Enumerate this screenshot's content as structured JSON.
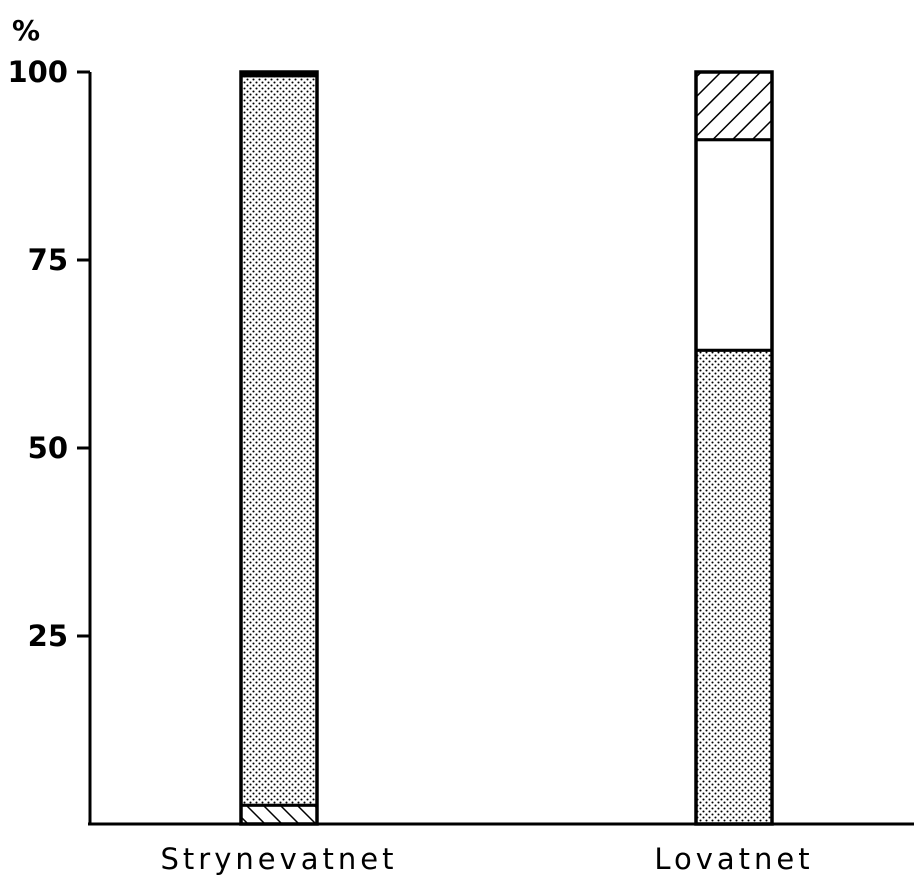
{
  "chart_data": {
    "type": "stacked-bar",
    "ylabel": "%",
    "ylim": [
      0,
      100
    ],
    "yticks": [
      25,
      50,
      75,
      100
    ],
    "categories": [
      "Strynevatnet",
      "Lovatnet"
    ],
    "segment_patterns": [
      "hatched-backslash",
      "dotted",
      "white",
      "hatched-slash",
      "black"
    ],
    "series": [
      {
        "pattern": "hatched-backslash",
        "values": [
          2.5,
          0
        ]
      },
      {
        "pattern": "dotted",
        "values": [
          97,
          63
        ]
      },
      {
        "pattern": "white",
        "values": [
          0,
          28
        ]
      },
      {
        "pattern": "hatched-slash",
        "values": [
          0,
          9
        ]
      },
      {
        "pattern": "black",
        "values": [
          0.5,
          0
        ]
      }
    ]
  }
}
